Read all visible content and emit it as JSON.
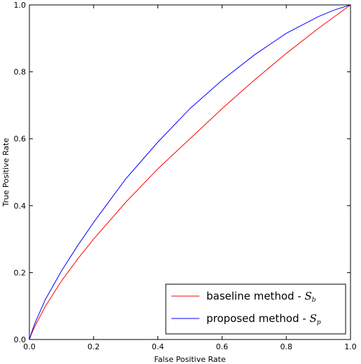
{
  "chart_data": {
    "type": "line",
    "title": "",
    "xlabel": "False Positive Rate",
    "ylabel": "True Positive Rate",
    "xlim": [
      0.0,
      1.0
    ],
    "ylim": [
      0.0,
      1.0
    ],
    "xticks": [
      "0.0",
      "0.2",
      "0.4",
      "0.6",
      "0.8",
      "1.0"
    ],
    "yticks": [
      "0.0",
      "0.2",
      "0.4",
      "0.6",
      "0.8",
      "1.0"
    ],
    "grid": false,
    "legend_position": "lower-right",
    "series": [
      {
        "name": "baseline method - ",
        "name_symbol": "S",
        "name_subscript": "b",
        "color": "#ff0000",
        "x": [
          0.0,
          0.01,
          0.02,
          0.05,
          0.1,
          0.15,
          0.2,
          0.3,
          0.4,
          0.5,
          0.6,
          0.7,
          0.8,
          0.9,
          1.0
        ],
        "y": [
          0.0,
          0.025,
          0.045,
          0.1,
          0.175,
          0.24,
          0.3,
          0.41,
          0.51,
          0.6,
          0.69,
          0.775,
          0.855,
          0.93,
          1.0
        ]
      },
      {
        "name": "proposed method - ",
        "name_symbol": "S",
        "name_subscript": "p",
        "color": "#0000ff",
        "x": [
          0.0,
          0.01,
          0.02,
          0.05,
          0.1,
          0.15,
          0.2,
          0.3,
          0.4,
          0.5,
          0.6,
          0.7,
          0.8,
          0.9,
          0.95,
          1.0
        ],
        "y": [
          0.0,
          0.03,
          0.055,
          0.12,
          0.205,
          0.28,
          0.35,
          0.48,
          0.59,
          0.69,
          0.775,
          0.85,
          0.915,
          0.965,
          0.985,
          1.0
        ]
      }
    ]
  }
}
